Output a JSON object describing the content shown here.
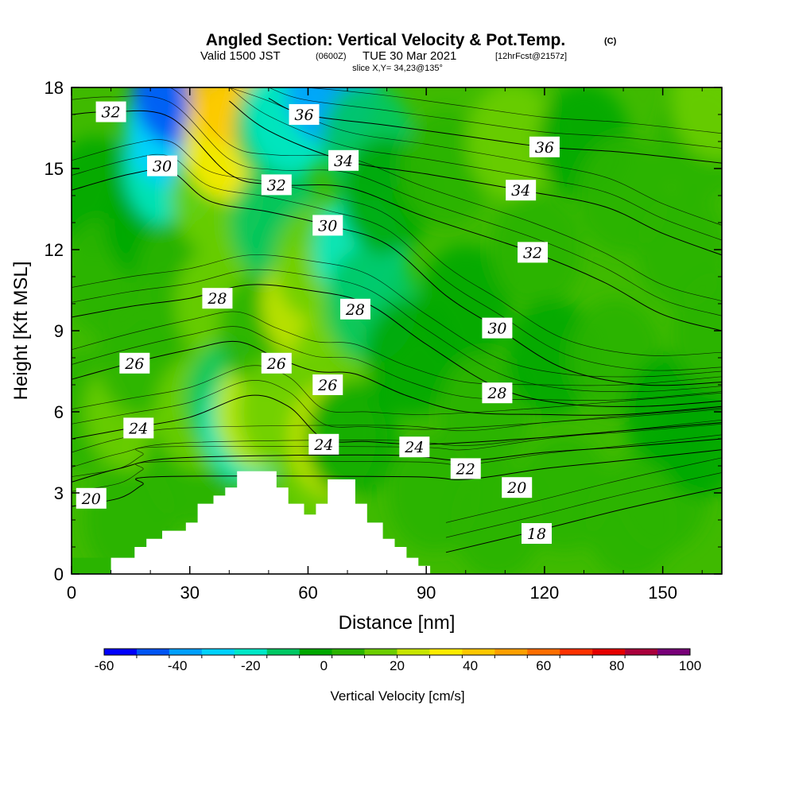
{
  "chart_data": {
    "type": "heatmap",
    "title": "Angled Section: Vertical Velocity & Pot.Temp.",
    "title_mark": "(C)",
    "subtitle": {
      "valid": "Valid 1500 JST",
      "utc": "(0600Z)",
      "date": "TUE 30 Mar 2021",
      "forecast": "[12hrFcst@2157z]"
    },
    "slice_label": "slice X,Y= 34,23@135°",
    "xlabel": "Distance [nm]",
    "ylabel": "Height [Kft MSL]",
    "xlim": [
      0,
      165
    ],
    "ylim": [
      0,
      18
    ],
    "x_ticks": [
      "0",
      "30",
      "60",
      "90",
      "120",
      "150"
    ],
    "y_ticks": [
      "0",
      "3",
      "6",
      "9",
      "12",
      "15",
      "18"
    ],
    "colorbar": {
      "label": "Vertical Velocity [cm/s]",
      "range": [
        -60,
        100
      ],
      "tick_labels": [
        "-60",
        "-40",
        "-20",
        "0",
        "20",
        "40",
        "60",
        "80",
        "100"
      ],
      "colors": [
        "#0000ff",
        "#0055f5",
        "#00a0ff",
        "#00d2ff",
        "#00e8c8",
        "#00c864",
        "#00a800",
        "#2ab400",
        "#6cce00",
        "#c8e600",
        "#ffec00",
        "#ffc800",
        "#ffa000",
        "#ff6e00",
        "#ff3200",
        "#e60000",
        "#aa003c",
        "#780078"
      ]
    },
    "field_values_cm_s": [
      {
        "x": 3,
        "y": 6,
        "v": 4
      },
      {
        "x": 6,
        "y": 14,
        "v": 2
      },
      {
        "x": 9,
        "y": 11,
        "v": 5
      },
      {
        "x": 15,
        "y": 2,
        "v": 8
      },
      {
        "x": 15,
        "y": 6,
        "v": 14
      },
      {
        "x": 18,
        "y": 8,
        "v": 6
      },
      {
        "x": 20,
        "y": 13,
        "v": 0
      },
      {
        "x": 25,
        "y": 15,
        "v": -22
      },
      {
        "x": 25,
        "y": 16.5,
        "v": -32
      },
      {
        "x": 27,
        "y": 18,
        "v": -45
      },
      {
        "x": 28,
        "y": 11,
        "v": 3
      },
      {
        "x": 30,
        "y": 4,
        "v": 5
      },
      {
        "x": 33,
        "y": 6,
        "v": 15
      },
      {
        "x": 37,
        "y": 14,
        "v": 14
      },
      {
        "x": 38,
        "y": 10,
        "v": 12
      },
      {
        "x": 40,
        "y": 16,
        "v": 34
      },
      {
        "x": 41,
        "y": 18,
        "v": 42
      },
      {
        "x": 41,
        "y": 6.5,
        "v": -8
      },
      {
        "x": 45,
        "y": 5.5,
        "v": -18
      },
      {
        "x": 48,
        "y": 6,
        "v": 28
      },
      {
        "x": 49,
        "y": 9,
        "v": 3
      },
      {
        "x": 52,
        "y": 13,
        "v": -12
      },
      {
        "x": 53,
        "y": 16.5,
        "v": -14
      },
      {
        "x": 54,
        "y": 6,
        "v": 12
      },
      {
        "x": 56,
        "y": 17,
        "v": -20
      },
      {
        "x": 60,
        "y": 10,
        "v": 20
      },
      {
        "x": 63,
        "y": 11.5,
        "v": 18
      },
      {
        "x": 63,
        "y": 4,
        "v": 16
      },
      {
        "x": 66,
        "y": 18,
        "v": -42
      },
      {
        "x": 67,
        "y": 7.5,
        "v": 12
      },
      {
        "x": 67,
        "y": 5,
        "v": 22
      },
      {
        "x": 71,
        "y": 5,
        "v": -4
      },
      {
        "x": 73,
        "y": 12,
        "v": -18
      },
      {
        "x": 75,
        "y": 16,
        "v": -12
      },
      {
        "x": 76,
        "y": 10,
        "v": -8
      },
      {
        "x": 80,
        "y": 14,
        "v": -4
      },
      {
        "x": 86,
        "y": 8,
        "v": -2
      },
      {
        "x": 92,
        "y": 3,
        "v": 9
      },
      {
        "x": 95,
        "y": 15,
        "v": 5
      },
      {
        "x": 100,
        "y": 10,
        "v": -3
      },
      {
        "x": 105,
        "y": 6,
        "v": 6
      },
      {
        "x": 108,
        "y": 2,
        "v": 4
      },
      {
        "x": 112,
        "y": 16,
        "v": 12
      },
      {
        "x": 118,
        "y": 12,
        "v": 4
      },
      {
        "x": 122,
        "y": 8,
        "v": -2
      },
      {
        "x": 125,
        "y": 3,
        "v": 8
      },
      {
        "x": 130,
        "y": 16,
        "v": -4
      },
      {
        "x": 138,
        "y": 8,
        "v": 3
      },
      {
        "x": 140,
        "y": 14,
        "v": 7
      },
      {
        "x": 142,
        "y": 2,
        "v": 6
      },
      {
        "x": 150,
        "y": 3,
        "v": 7
      },
      {
        "x": 152,
        "y": 6,
        "v": -4
      },
      {
        "x": 155,
        "y": 12,
        "v": 8
      },
      {
        "x": 160,
        "y": 5,
        "v": -2
      },
      {
        "x": 160,
        "y": 16,
        "v": 10
      },
      {
        "x": 164,
        "y": 9,
        "v": 9
      },
      {
        "x": 164,
        "y": 17.5,
        "v": 16
      }
    ],
    "isentropes": [
      {
        "label": "18",
        "labels_at": [
          {
            "x": 118,
            "y": 1.5
          }
        ],
        "points": [
          [
            95,
            0.8
          ],
          [
            118,
            1.6
          ],
          [
            140,
            2.4
          ],
          [
            165,
            3.2
          ]
        ]
      },
      {
        "label": "20",
        "labels_at": [
          {
            "x": 5,
            "y": 2.8
          },
          {
            "x": 113,
            "y": 3.2
          }
        ],
        "points": [
          [
            0,
            2.5
          ],
          [
            12,
            2.8
          ],
          [
            18,
            3.3
          ],
          [
            22,
            3.6
          ],
          [
            85,
            3.6
          ],
          [
            100,
            3.5
          ],
          [
            120,
            3.9
          ],
          [
            140,
            4.2
          ],
          [
            165,
            4.6
          ]
        ]
      },
      {
        "label": "22",
        "labels_at": [
          {
            "x": 100,
            "y": 3.9
          }
        ],
        "points": [
          [
            0,
            3.4
          ],
          [
            12,
            3.9
          ],
          [
            28,
            4.3
          ],
          [
            80,
            4.4
          ],
          [
            100,
            4.2
          ],
          [
            120,
            4.5
          ],
          [
            140,
            4.7
          ],
          [
            165,
            5.0
          ]
        ]
      },
      {
        "label": "24",
        "labels_at": [
          {
            "x": 17,
            "y": 5.4
          },
          {
            "x": 64,
            "y": 4.8
          },
          {
            "x": 87,
            "y": 4.7
          }
        ],
        "points": [
          [
            0,
            5.0
          ],
          [
            15,
            5.4
          ],
          [
            30,
            5.8
          ],
          [
            45,
            6.6
          ],
          [
            55,
            6.2
          ],
          [
            64,
            5.0
          ],
          [
            75,
            4.9
          ],
          [
            90,
            4.8
          ],
          [
            115,
            5.0
          ],
          [
            140,
            5.3
          ],
          [
            165,
            5.6
          ]
        ]
      },
      {
        "label": "26",
        "labels_at": [
          {
            "x": 16,
            "y": 7.8
          },
          {
            "x": 52,
            "y": 7.8
          },
          {
            "x": 65,
            "y": 7.0
          }
        ],
        "points": [
          [
            0,
            7.2
          ],
          [
            15,
            7.8
          ],
          [
            30,
            8.3
          ],
          [
            42,
            8.6
          ],
          [
            52,
            8.0
          ],
          [
            62,
            7.5
          ],
          [
            72,
            7.4
          ],
          [
            85,
            6.6
          ],
          [
            100,
            6.0
          ],
          [
            120,
            5.9
          ],
          [
            140,
            5.9
          ],
          [
            165,
            6.2
          ]
        ]
      },
      {
        "label": "28",
        "labels_at": [
          {
            "x": 37,
            "y": 10.2
          },
          {
            "x": 72,
            "y": 9.8
          },
          {
            "x": 108,
            "y": 6.7
          }
        ],
        "points": [
          [
            0,
            9.5
          ],
          [
            15,
            9.9
          ],
          [
            30,
            10.2
          ],
          [
            45,
            10.7
          ],
          [
            60,
            10.5
          ],
          [
            75,
            10.0
          ],
          [
            90,
            8.5
          ],
          [
            108,
            6.9
          ],
          [
            125,
            6.3
          ],
          [
            145,
            6.2
          ],
          [
            165,
            6.4
          ]
        ]
      },
      {
        "label": "30",
        "labels_at": [
          {
            "x": 23,
            "y": 15.1
          },
          {
            "x": 65,
            "y": 12.9
          },
          {
            "x": 108,
            "y": 9.1
          }
        ],
        "points": [
          [
            0,
            14.2
          ],
          [
            15,
            14.8
          ],
          [
            25,
            14.9
          ],
          [
            35,
            13.8
          ],
          [
            50,
            13.4
          ],
          [
            65,
            12.9
          ],
          [
            80,
            12.2
          ],
          [
            95,
            10.3
          ],
          [
            108,
            9.1
          ],
          [
            125,
            7.6
          ],
          [
            145,
            7.0
          ],
          [
            165,
            7.1
          ]
        ]
      },
      {
        "label": "32",
        "labels_at": [
          {
            "x": 10,
            "y": 17.1
          },
          {
            "x": 52,
            "y": 14.4
          },
          {
            "x": 117,
            "y": 11.9
          }
        ],
        "points": [
          [
            0,
            17.0
          ],
          [
            10,
            17.1
          ],
          [
            25,
            16.9
          ],
          [
            40,
            14.8
          ],
          [
            52,
            14.4
          ],
          [
            70,
            14.3
          ],
          [
            90,
            13.2
          ],
          [
            117,
            11.9
          ],
          [
            135,
            10.8
          ],
          [
            150,
            9.6
          ],
          [
            165,
            9.0
          ]
        ]
      },
      {
        "label": "34",
        "labels_at": [
          {
            "x": 69,
            "y": 15.3
          },
          {
            "x": 114,
            "y": 14.2
          }
        ],
        "points": [
          [
            40,
            17.5
          ],
          [
            50,
            16.4
          ],
          [
            69,
            15.3
          ],
          [
            90,
            14.8
          ],
          [
            114,
            14.2
          ],
          [
            135,
            13.6
          ],
          [
            150,
            12.6
          ],
          [
            165,
            11.8
          ]
        ]
      },
      {
        "label": "36",
        "labels_at": [
          {
            "x": 59,
            "y": 17.0
          },
          {
            "x": 120,
            "y": 15.8
          }
        ],
        "points": [
          [
            50,
            17.6
          ],
          [
            59,
            17.0
          ],
          [
            80,
            16.6
          ],
          [
            100,
            16.2
          ],
          [
            120,
            15.8
          ],
          [
            140,
            15.6
          ],
          [
            165,
            15.2
          ]
        ]
      }
    ],
    "terrain_heights_kft": [
      {
        "x": 10,
        "h": 0.6
      },
      {
        "x": 16,
        "h": 1.0
      },
      {
        "x": 19,
        "h": 1.3
      },
      {
        "x": 23,
        "h": 1.6
      },
      {
        "x": 29,
        "h": 1.9
      },
      {
        "x": 32,
        "h": 2.6
      },
      {
        "x": 36,
        "h": 2.9
      },
      {
        "x": 39,
        "h": 3.2
      },
      {
        "x": 42,
        "h": 3.8
      },
      {
        "x": 52,
        "h": 3.2
      },
      {
        "x": 55,
        "h": 2.6
      },
      {
        "x": 59,
        "h": 2.2
      },
      {
        "x": 62,
        "h": 2.6
      },
      {
        "x": 65,
        "h": 3.5
      },
      {
        "x": 72,
        "h": 2.6
      },
      {
        "x": 75,
        "h": 1.9
      },
      {
        "x": 79,
        "h": 1.3
      },
      {
        "x": 82,
        "h": 1.0
      },
      {
        "x": 85,
        "h": 0.6
      },
      {
        "x": 88,
        "h": 0.3
      },
      {
        "x": 91,
        "h": 0.0
      }
    ]
  }
}
